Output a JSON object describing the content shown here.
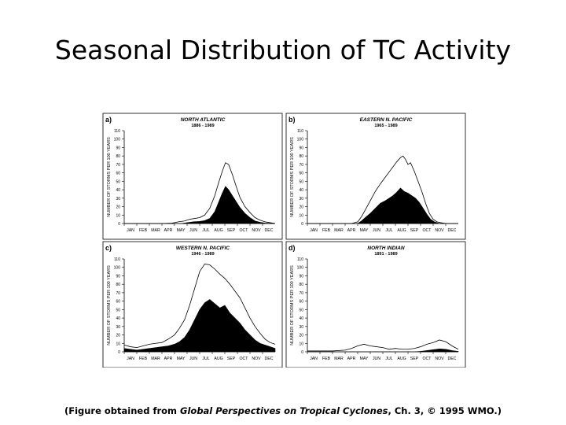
{
  "slide": {
    "title": "Seasonal Distribution of TC Activity",
    "caption": {
      "prefix": "(Figure obtained from ",
      "italic": "Global Perspectives on Tropical Cyclones",
      "suffix": ", Ch. 3, © 1995 WMO.)"
    }
  },
  "chart_data": [
    {
      "type": "area",
      "panel_letter": "a)",
      "title": "NORTH ATLANTIC",
      "subtitle": "1886 - 1989",
      "xlabel": "",
      "ylabel": "NUMBER OF STORMS PER 100 YEARS",
      "ylim": [
        0,
        110
      ],
      "yticks": [
        0,
        10,
        20,
        30,
        40,
        50,
        60,
        70,
        80,
        90,
        100,
        110
      ],
      "xticks": [
        "JAN",
        "FEB",
        "MAR",
        "APR",
        "MAY",
        "JUN",
        "JUL",
        "AUG",
        "SEP",
        "OCT",
        "NOV",
        "DEC"
      ],
      "xlim": [
        0,
        12
      ],
      "series": [
        {
          "kind": "outline",
          "x": [
            0,
            1,
            2,
            3,
            3.8,
            4.3,
            4.8,
            5.2,
            5.6,
            6.0,
            6.4,
            6.8,
            7.2,
            7.5,
            7.8,
            8.05,
            8.3,
            8.6,
            8.9,
            9.2,
            9.6,
            10.0,
            10.4,
            10.8,
            11.2,
            11.6,
            12
          ],
          "y": [
            0,
            0,
            0,
            0,
            0.5,
            2,
            3,
            5,
            6,
            7,
            10,
            18,
            33,
            48,
            62,
            72,
            70,
            58,
            44,
            31,
            20,
            13,
            7,
            4,
            2,
            1,
            0
          ]
        },
        {
          "kind": "filled",
          "x": [
            0,
            4.5,
            5.0,
            5.5,
            6.0,
            6.4,
            6.8,
            7.2,
            7.5,
            7.8,
            8.05,
            8.3,
            8.6,
            8.9,
            9.2,
            9.6,
            10.0,
            10.4,
            10.8,
            11.2,
            12
          ],
          "y": [
            0,
            0,
            1,
            2,
            2.5,
            3.5,
            6,
            14,
            25,
            36,
            44,
            40,
            33,
            26,
            19,
            12,
            7,
            3,
            1.5,
            0.5,
            0
          ]
        }
      ]
    },
    {
      "type": "area",
      "panel_letter": "b)",
      "title": "EASTERN N. PACIFIC",
      "subtitle": "1965 - 1989",
      "xlabel": "",
      "ylabel": "NUMBER OF STORMS PER 100 YEARS",
      "ylim": [
        0,
        110
      ],
      "yticks": [
        0,
        10,
        20,
        30,
        40,
        50,
        60,
        70,
        80,
        90,
        100,
        110
      ],
      "xticks": [
        "JAN",
        "FEB",
        "MAR",
        "APR",
        "MAY",
        "JUN",
        "JUL",
        "AUG",
        "SEP",
        "OCT",
        "NOV",
        "DEC"
      ],
      "xlim": [
        0,
        12
      ],
      "series": [
        {
          "kind": "outline",
          "x": [
            0,
            3.5,
            4.0,
            4.3,
            4.6,
            5.0,
            5.4,
            5.8,
            6.2,
            6.5,
            6.8,
            7.1,
            7.4,
            7.6,
            7.8,
            8.0,
            8.2,
            8.5,
            8.8,
            9.1,
            9.4,
            9.7,
            10.0,
            10.3,
            10.6,
            11,
            12
          ],
          "y": [
            0,
            0,
            2,
            8,
            16,
            27,
            38,
            47,
            55,
            61,
            67,
            73,
            78,
            80,
            76,
            70,
            72,
            62,
            50,
            38,
            24,
            12,
            5,
            2,
            1,
            0,
            0
          ]
        },
        {
          "kind": "filled",
          "x": [
            0,
            4.0,
            4.3,
            4.6,
            5.0,
            5.4,
            5.8,
            6.2,
            6.5,
            6.8,
            7.1,
            7.4,
            7.7,
            8.0,
            8.3,
            8.6,
            8.9,
            9.2,
            9.5,
            9.8,
            10.1,
            10.5,
            12
          ],
          "y": [
            0,
            0,
            3,
            7,
            12,
            18,
            24,
            27,
            30,
            33,
            37,
            42,
            38,
            36,
            33,
            30,
            25,
            18,
            11,
            5,
            2,
            0,
            0
          ]
        }
      ]
    },
    {
      "type": "area",
      "panel_letter": "c)",
      "title": "WESTERN N. PACIFIC",
      "subtitle": "1946 - 1989",
      "xlabel": "",
      "ylabel": "NUMBER OF STORMS PER 100 YEARS",
      "ylim": [
        0,
        110
      ],
      "yticks": [
        0,
        10,
        20,
        30,
        40,
        50,
        60,
        70,
        80,
        90,
        100,
        110
      ],
      "xticks": [
        "JAN",
        "FEB",
        "MAR",
        "APR",
        "MAY",
        "JUN",
        "JUL",
        "AUG",
        "SEP",
        "OCT",
        "NOV",
        "DEC"
      ],
      "xlim": [
        0,
        12
      ],
      "series": [
        {
          "kind": "outline",
          "x": [
            0,
            0.5,
            1.0,
            1.5,
            2.0,
            2.5,
            3.0,
            3.5,
            4.0,
            4.4,
            4.8,
            5.2,
            5.6,
            6.0,
            6.4,
            6.8,
            7.2,
            7.6,
            8.0,
            8.4,
            8.8,
            9.2,
            9.6,
            10.0,
            10.4,
            10.8,
            11.2,
            11.6,
            12
          ],
          "y": [
            8,
            6,
            5,
            7,
            9,
            10,
            11,
            15,
            20,
            28,
            38,
            55,
            75,
            95,
            104,
            103,
            98,
            92,
            87,
            80,
            72,
            64,
            52,
            40,
            30,
            22,
            15,
            11,
            9
          ]
        },
        {
          "kind": "filled",
          "x": [
            0,
            0.5,
            1.0,
            1.5,
            2.0,
            2.5,
            3.0,
            3.5,
            4.0,
            4.4,
            4.8,
            5.2,
            5.6,
            6.0,
            6.4,
            6.8,
            7.2,
            7.6,
            8.0,
            8.4,
            8.8,
            9.2,
            9.6,
            10.0,
            10.4,
            10.8,
            11.2,
            11.6,
            12
          ],
          "y": [
            4,
            3,
            2,
            3,
            4,
            5,
            6,
            7,
            9,
            12,
            17,
            26,
            38,
            50,
            58,
            62,
            57,
            52,
            55,
            46,
            40,
            34,
            26,
            20,
            14,
            10,
            8,
            6,
            4
          ]
        }
      ]
    },
    {
      "type": "area",
      "panel_letter": "d)",
      "title": "NORTH INDIAN",
      "subtitle": "1891 - 1989",
      "xlabel": "",
      "ylabel": "NUMBER OF STORMS PER 100 YEARS",
      "ylim": [
        0,
        110
      ],
      "yticks": [
        0,
        10,
        20,
        30,
        40,
        50,
        60,
        70,
        80,
        90,
        100,
        110
      ],
      "xticks": [
        "JAN",
        "FEB",
        "MAR",
        "APR",
        "MAY",
        "JUN",
        "JUL",
        "AUG",
        "SEP",
        "OCT",
        "NOV",
        "DEC"
      ],
      "xlim": [
        0,
        12
      ],
      "series": [
        {
          "kind": "outline",
          "x": [
            0,
            1,
            2,
            3,
            3.5,
            4.0,
            4.5,
            5.0,
            5.5,
            6.0,
            6.5,
            7.0,
            7.5,
            8.0,
            8.5,
            9.0,
            9.5,
            10.0,
            10.5,
            11.0,
            11.5,
            12
          ],
          "y": [
            1,
            1,
            1,
            2,
            4,
            7,
            9,
            7,
            6,
            5,
            3,
            4,
            3,
            3,
            4,
            6,
            9,
            11,
            14,
            12,
            7,
            3
          ]
        },
        {
          "kind": "filled",
          "x": [
            0,
            8.5,
            9.0,
            9.5,
            10.0,
            10.5,
            11.0,
            11.5,
            12
          ],
          "y": [
            0,
            0,
            0.5,
            1.5,
            2.5,
            3.5,
            3.0,
            1.5,
            0.5
          ]
        }
      ]
    }
  ]
}
